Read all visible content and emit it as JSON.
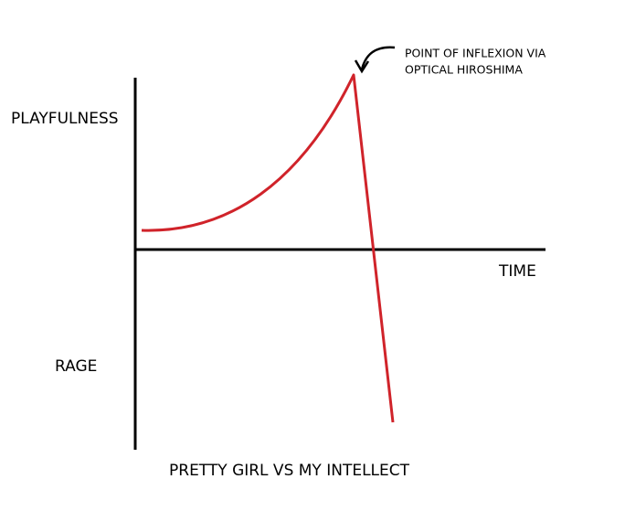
{
  "chart_data": {
    "title": "PRETTY GIRL VS MY INTELLECT",
    "y_label_top": "PLAYFULNESS",
    "y_label_bottom": "RAGE",
    "x_label": "TIME",
    "annotation": [
      "POINT OF INFLEXION VIA",
      "OPTICAL HIROSHIMA"
    ]
  }
}
